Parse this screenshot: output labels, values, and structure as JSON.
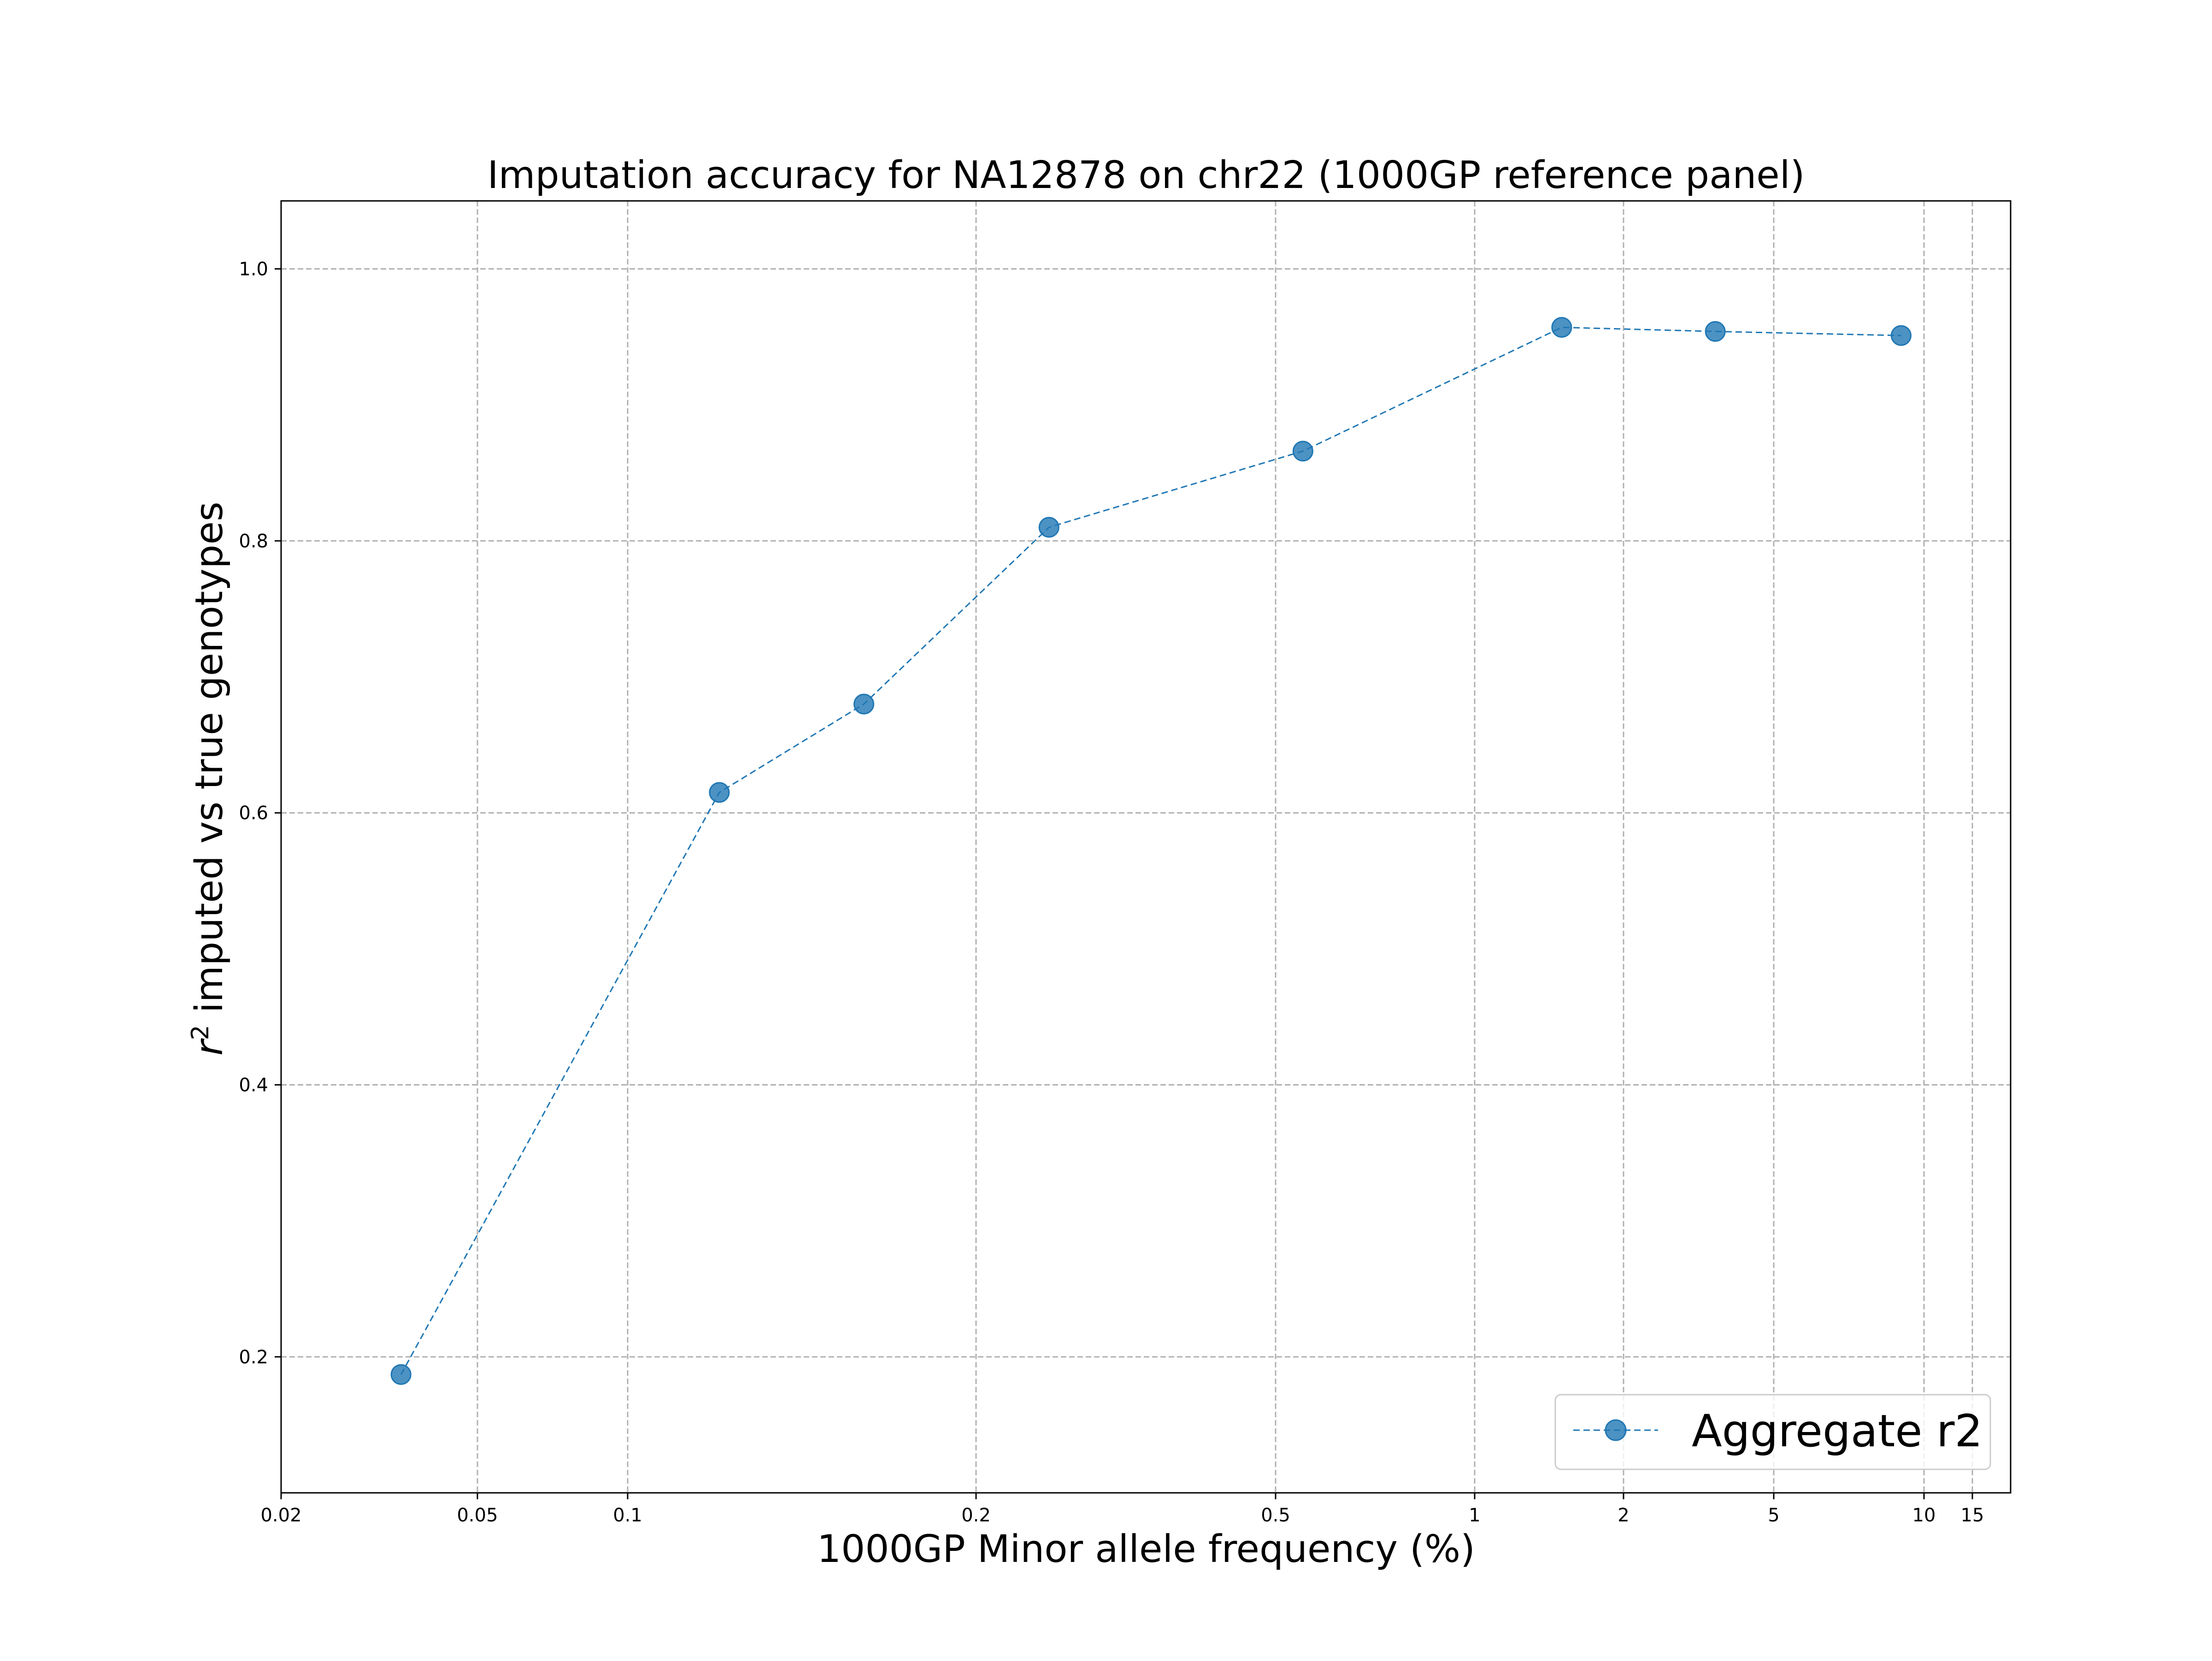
{
  "chart_data": {
    "type": "line",
    "title": "Imputation accuracy for NA12878 on chr22 (1000GP reference panel)",
    "xlabel": "1000GP Minor allele frequency (%)",
    "ylabel": {
      "symbol": "r",
      "superscript": "2",
      "text": " imputed vs true genotypes"
    },
    "x_scale": "nonlinear",
    "x_ticks": [
      "0.02",
      "0.05",
      "0.1",
      "0.2",
      "0.5",
      "1",
      "2",
      "5",
      "10",
      "15"
    ],
    "y_ticks": [
      "0.2",
      "0.4",
      "0.6",
      "0.8",
      "1.0"
    ],
    "ylim": [
      0.1,
      1.05
    ],
    "grid": true,
    "legend_position": "lower-right",
    "series": [
      {
        "name": "Aggregate r2",
        "color": "#1f77b4",
        "line_style": "dashed",
        "marker": "circle",
        "x": [
          0.035,
          0.12,
          0.16,
          0.25,
          0.55,
          1.5,
          3.5,
          9
        ],
        "y": [
          0.187,
          0.615,
          0.68,
          0.81,
          0.866,
          0.957,
          0.954,
          0.951
        ]
      }
    ]
  }
}
